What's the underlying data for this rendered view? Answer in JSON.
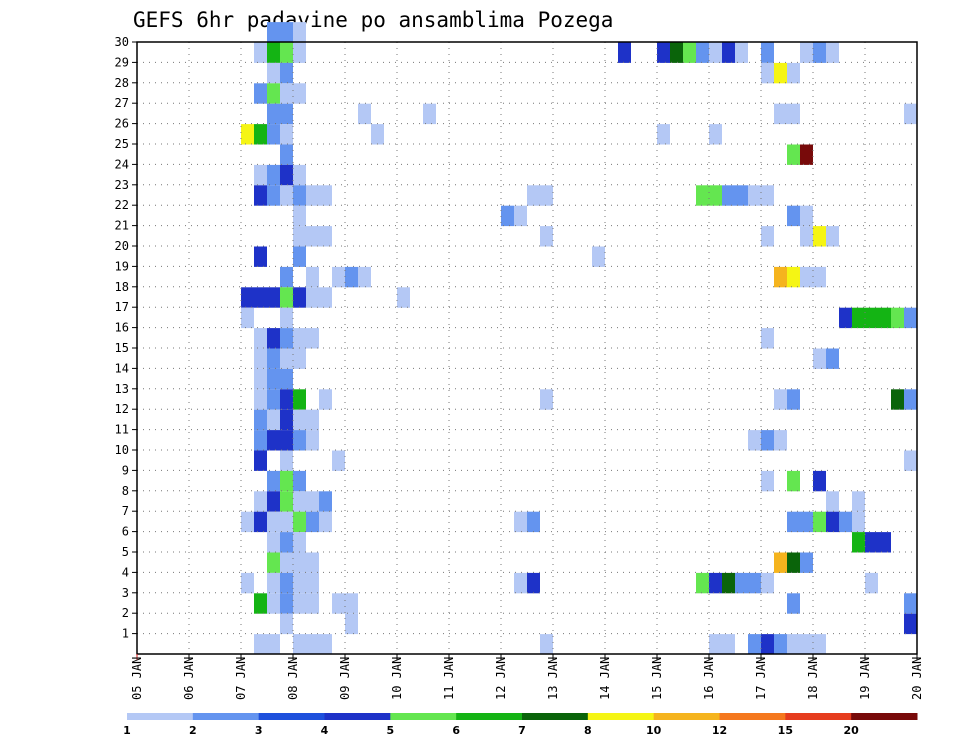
{
  "chart_data": {
    "type": "heatmap",
    "title": "GEFS 6hr padavine po ansamblima Pozega",
    "xlabel": "",
    "ylabel": "",
    "x_ticks": [
      "05 JAN",
      "06 JAN",
      "07 JAN",
      "08 JAN",
      "09 JAN",
      "10 JAN",
      "11 JAN",
      "12 JAN",
      "13 JAN",
      "14 JAN",
      "15 JAN",
      "16 JAN",
      "17 JAN",
      "18 JAN",
      "19 JAN",
      "20 JAN"
    ],
    "y_ticks": [
      1,
      2,
      3,
      4,
      5,
      6,
      7,
      8,
      9,
      10,
      11,
      12,
      13,
      14,
      15,
      16,
      17,
      18,
      19,
      20,
      21,
      22,
      23,
      24,
      25,
      26,
      27,
      28,
      29,
      30
    ],
    "xlim": [
      0,
      60
    ],
    "ylim": [
      0,
      30
    ],
    "x_unit": "6-hour steps from 05 JAN 00UTC",
    "grid": true,
    "colorbar": {
      "labels": [
        "1",
        "2",
        "3",
        "4",
        "5",
        "6",
        "7",
        "8",
        "10",
        "12",
        "15",
        "20"
      ],
      "colors": [
        "#b4c8f5",
        "#6494ef",
        "#1e50dc",
        "#1e32c8",
        "#64e650",
        "#14b414",
        "#0a640a",
        "#f5f514",
        "#f5b41e",
        "#f5781e",
        "#e63c1e",
        "#780a0a"
      ]
    },
    "cells": [
      {
        "x": 10,
        "y": 30,
        "v": 2
      },
      {
        "x": 11,
        "y": 30,
        "v": 2
      },
      {
        "x": 12,
        "y": 30,
        "v": 1
      },
      {
        "x": 9,
        "y": 29,
        "v": 1
      },
      {
        "x": 10,
        "y": 29,
        "v": 6
      },
      {
        "x": 11,
        "y": 29,
        "v": 5
      },
      {
        "x": 12,
        "y": 29,
        "v": 1
      },
      {
        "x": 37,
        "y": 29,
        "v": 4
      },
      {
        "x": 40,
        "y": 29,
        "v": 4
      },
      {
        "x": 41,
        "y": 29,
        "v": 7
      },
      {
        "x": 42,
        "y": 29,
        "v": 5
      },
      {
        "x": 43,
        "y": 29,
        "v": 2
      },
      {
        "x": 44,
        "y": 29,
        "v": 1
      },
      {
        "x": 45,
        "y": 29,
        "v": 4
      },
      {
        "x": 46,
        "y": 29,
        "v": 1
      },
      {
        "x": 48,
        "y": 29,
        "v": 2
      },
      {
        "x": 51,
        "y": 29,
        "v": 1
      },
      {
        "x": 52,
        "y": 29,
        "v": 2
      },
      {
        "x": 53,
        "y": 29,
        "v": 1
      },
      {
        "x": 10,
        "y": 28,
        "v": 1
      },
      {
        "x": 11,
        "y": 28,
        "v": 2
      },
      {
        "x": 48,
        "y": 28,
        "v": 1
      },
      {
        "x": 49,
        "y": 28,
        "v": 8
      },
      {
        "x": 50,
        "y": 28,
        "v": 1
      },
      {
        "x": 9,
        "y": 27,
        "v": 2
      },
      {
        "x": 10,
        "y": 27,
        "v": 5
      },
      {
        "x": 11,
        "y": 27,
        "v": 1
      },
      {
        "x": 12,
        "y": 27,
        "v": 1
      },
      {
        "x": 10,
        "y": 26,
        "v": 2
      },
      {
        "x": 11,
        "y": 26,
        "v": 2
      },
      {
        "x": 17,
        "y": 26,
        "v": 1
      },
      {
        "x": 22,
        "y": 26,
        "v": 1
      },
      {
        "x": 49,
        "y": 26,
        "v": 1
      },
      {
        "x": 50,
        "y": 26,
        "v": 1
      },
      {
        "x": 59,
        "y": 26,
        "v": 1
      },
      {
        "x": 8,
        "y": 25,
        "v": 8
      },
      {
        "x": 9,
        "y": 25,
        "v": 6
      },
      {
        "x": 10,
        "y": 25,
        "v": 2
      },
      {
        "x": 11,
        "y": 25,
        "v": 1
      },
      {
        "x": 18,
        "y": 25,
        "v": 1
      },
      {
        "x": 40,
        "y": 25,
        "v": 1
      },
      {
        "x": 44,
        "y": 25,
        "v": 1
      },
      {
        "x": 11,
        "y": 24,
        "v": 2
      },
      {
        "x": 50,
        "y": 24,
        "v": 5
      },
      {
        "x": 51,
        "y": 24,
        "v": 20
      },
      {
        "x": 9,
        "y": 23,
        "v": 1
      },
      {
        "x": 10,
        "y": 23,
        "v": 2
      },
      {
        "x": 11,
        "y": 23,
        "v": 4
      },
      {
        "x": 12,
        "y": 23,
        "v": 1
      },
      {
        "x": 9,
        "y": 22,
        "v": 4
      },
      {
        "x": 10,
        "y": 22,
        "v": 2
      },
      {
        "x": 11,
        "y": 22,
        "v": 1
      },
      {
        "x": 12,
        "y": 22,
        "v": 2
      },
      {
        "x": 13,
        "y": 22,
        "v": 1
      },
      {
        "x": 14,
        "y": 22,
        "v": 1
      },
      {
        "x": 30,
        "y": 22,
        "v": 1
      },
      {
        "x": 31,
        "y": 22,
        "v": 1
      },
      {
        "x": 43,
        "y": 22,
        "v": 5
      },
      {
        "x": 44,
        "y": 22,
        "v": 5
      },
      {
        "x": 45,
        "y": 22,
        "v": 2
      },
      {
        "x": 46,
        "y": 22,
        "v": 2
      },
      {
        "x": 47,
        "y": 22,
        "v": 1
      },
      {
        "x": 48,
        "y": 22,
        "v": 1
      },
      {
        "x": 12,
        "y": 21,
        "v": 1
      },
      {
        "x": 28,
        "y": 21,
        "v": 2
      },
      {
        "x": 29,
        "y": 21,
        "v": 1
      },
      {
        "x": 50,
        "y": 21,
        "v": 2
      },
      {
        "x": 51,
        "y": 21,
        "v": 1
      },
      {
        "x": 12,
        "y": 20,
        "v": 1
      },
      {
        "x": 13,
        "y": 20,
        "v": 1
      },
      {
        "x": 14,
        "y": 20,
        "v": 1
      },
      {
        "x": 31,
        "y": 20,
        "v": 1
      },
      {
        "x": 48,
        "y": 20,
        "v": 1
      },
      {
        "x": 51,
        "y": 20,
        "v": 1
      },
      {
        "x": 52,
        "y": 20,
        "v": 8
      },
      {
        "x": 53,
        "y": 20,
        "v": 1
      },
      {
        "x": 9,
        "y": 19,
        "v": 4
      },
      {
        "x": 12,
        "y": 19,
        "v": 2
      },
      {
        "x": 35,
        "y": 19,
        "v": 1
      },
      {
        "x": 11,
        "y": 18,
        "v": 2
      },
      {
        "x": 13,
        "y": 18,
        "v": 1
      },
      {
        "x": 15,
        "y": 18,
        "v": 1
      },
      {
        "x": 16,
        "y": 18,
        "v": 2
      },
      {
        "x": 17,
        "y": 18,
        "v": 1
      },
      {
        "x": 49,
        "y": 18,
        "v": 10
      },
      {
        "x": 50,
        "y": 18,
        "v": 8
      },
      {
        "x": 51,
        "y": 18,
        "v": 1
      },
      {
        "x": 52,
        "y": 18,
        "v": 1
      },
      {
        "x": 8,
        "y": 17,
        "v": 4
      },
      {
        "x": 9,
        "y": 17,
        "v": 4
      },
      {
        "x": 10,
        "y": 17,
        "v": 4
      },
      {
        "x": 11,
        "y": 17,
        "v": 5
      },
      {
        "x": 12,
        "y": 17,
        "v": 4
      },
      {
        "x": 13,
        "y": 17,
        "v": 1
      },
      {
        "x": 14,
        "y": 17,
        "v": 1
      },
      {
        "x": 20,
        "y": 17,
        "v": 1
      },
      {
        "x": 8,
        "y": 16,
        "v": 1
      },
      {
        "x": 11,
        "y": 16,
        "v": 1
      },
      {
        "x": 54,
        "y": 16,
        "v": 4
      },
      {
        "x": 55,
        "y": 16,
        "v": 6
      },
      {
        "x": 56,
        "y": 16,
        "v": 6
      },
      {
        "x": 57,
        "y": 16,
        "v": 6
      },
      {
        "x": 58,
        "y": 16,
        "v": 5
      },
      {
        "x": 59,
        "y": 16,
        "v": 2
      },
      {
        "x": 9,
        "y": 15,
        "v": 1
      },
      {
        "x": 10,
        "y": 15,
        "v": 4
      },
      {
        "x": 11,
        "y": 15,
        "v": 2
      },
      {
        "x": 12,
        "y": 15,
        "v": 1
      },
      {
        "x": 13,
        "y": 15,
        "v": 1
      },
      {
        "x": 48,
        "y": 15,
        "v": 1
      },
      {
        "x": 9,
        "y": 14,
        "v": 1
      },
      {
        "x": 10,
        "y": 14,
        "v": 2
      },
      {
        "x": 11,
        "y": 14,
        "v": 1
      },
      {
        "x": 12,
        "y": 14,
        "v": 1
      },
      {
        "x": 52,
        "y": 14,
        "v": 1
      },
      {
        "x": 53,
        "y": 14,
        "v": 2
      },
      {
        "x": 9,
        "y": 13,
        "v": 1
      },
      {
        "x": 10,
        "y": 13,
        "v": 2
      },
      {
        "x": 11,
        "y": 13,
        "v": 2
      },
      {
        "x": 9,
        "y": 12,
        "v": 1
      },
      {
        "x": 10,
        "y": 12,
        "v": 2
      },
      {
        "x": 11,
        "y": 12,
        "v": 4
      },
      {
        "x": 12,
        "y": 12,
        "v": 6
      },
      {
        "x": 14,
        "y": 12,
        "v": 1
      },
      {
        "x": 31,
        "y": 12,
        "v": 1
      },
      {
        "x": 49,
        "y": 12,
        "v": 1
      },
      {
        "x": 50,
        "y": 12,
        "v": 2
      },
      {
        "x": 58,
        "y": 12,
        "v": 7
      },
      {
        "x": 59,
        "y": 12,
        "v": 2
      },
      {
        "x": 9,
        "y": 11,
        "v": 2
      },
      {
        "x": 10,
        "y": 11,
        "v": 1
      },
      {
        "x": 11,
        "y": 11,
        "v": 4
      },
      {
        "x": 12,
        "y": 11,
        "v": 1
      },
      {
        "x": 13,
        "y": 11,
        "v": 1
      },
      {
        "x": 9,
        "y": 10,
        "v": 2
      },
      {
        "x": 10,
        "y": 10,
        "v": 4
      },
      {
        "x": 11,
        "y": 10,
        "v": 4
      },
      {
        "x": 12,
        "y": 10,
        "v": 2
      },
      {
        "x": 13,
        "y": 10,
        "v": 1
      },
      {
        "x": 47,
        "y": 10,
        "v": 1
      },
      {
        "x": 48,
        "y": 10,
        "v": 2
      },
      {
        "x": 49,
        "y": 10,
        "v": 1
      },
      {
        "x": 9,
        "y": 9,
        "v": 4
      },
      {
        "x": 11,
        "y": 9,
        "v": 1
      },
      {
        "x": 15,
        "y": 9,
        "v": 1
      },
      {
        "x": 59,
        "y": 9,
        "v": 1
      },
      {
        "x": 10,
        "y": 8,
        "v": 2
      },
      {
        "x": 11,
        "y": 8,
        "v": 5
      },
      {
        "x": 12,
        "y": 8,
        "v": 2
      },
      {
        "x": 48,
        "y": 8,
        "v": 1
      },
      {
        "x": 50,
        "y": 8,
        "v": 5
      },
      {
        "x": 52,
        "y": 8,
        "v": 4
      },
      {
        "x": 9,
        "y": 7,
        "v": 1
      },
      {
        "x": 10,
        "y": 7,
        "v": 4
      },
      {
        "x": 11,
        "y": 7,
        "v": 5
      },
      {
        "x": 12,
        "y": 7,
        "v": 1
      },
      {
        "x": 13,
        "y": 7,
        "v": 1
      },
      {
        "x": 14,
        "y": 7,
        "v": 2
      },
      {
        "x": 53,
        "y": 7,
        "v": 1
      },
      {
        "x": 55,
        "y": 7,
        "v": 1
      },
      {
        "x": 8,
        "y": 6,
        "v": 1
      },
      {
        "x": 9,
        "y": 6,
        "v": 4
      },
      {
        "x": 10,
        "y": 6,
        "v": 1
      },
      {
        "x": 11,
        "y": 6,
        "v": 1
      },
      {
        "x": 12,
        "y": 6,
        "v": 5
      },
      {
        "x": 13,
        "y": 6,
        "v": 2
      },
      {
        "x": 14,
        "y": 6,
        "v": 1
      },
      {
        "x": 29,
        "y": 6,
        "v": 1
      },
      {
        "x": 30,
        "y": 6,
        "v": 2
      },
      {
        "x": 50,
        "y": 6,
        "v": 2
      },
      {
        "x": 51,
        "y": 6,
        "v": 2
      },
      {
        "x": 52,
        "y": 6,
        "v": 5
      },
      {
        "x": 53,
        "y": 6,
        "v": 4
      },
      {
        "x": 54,
        "y": 6,
        "v": 2
      },
      {
        "x": 55,
        "y": 6,
        "v": 1
      },
      {
        "x": 10,
        "y": 5,
        "v": 1
      },
      {
        "x": 11,
        "y": 5,
        "v": 2
      },
      {
        "x": 12,
        "y": 5,
        "v": 1
      },
      {
        "x": 55,
        "y": 5,
        "v": 6
      },
      {
        "x": 56,
        "y": 5,
        "v": 4
      },
      {
        "x": 57,
        "y": 5,
        "v": 4
      },
      {
        "x": 10,
        "y": 4,
        "v": 5
      },
      {
        "x": 11,
        "y": 4,
        "v": 1
      },
      {
        "x": 12,
        "y": 4,
        "v": 1
      },
      {
        "x": 13,
        "y": 4,
        "v": 1
      },
      {
        "x": 49,
        "y": 4,
        "v": 10
      },
      {
        "x": 50,
        "y": 4,
        "v": 7
      },
      {
        "x": 51,
        "y": 4,
        "v": 2
      },
      {
        "x": 8,
        "y": 3,
        "v": 1
      },
      {
        "x": 10,
        "y": 3,
        "v": 1
      },
      {
        "x": 11,
        "y": 3,
        "v": 2
      },
      {
        "x": 12,
        "y": 3,
        "v": 1
      },
      {
        "x": 13,
        "y": 3,
        "v": 1
      },
      {
        "x": 29,
        "y": 3,
        "v": 1
      },
      {
        "x": 30,
        "y": 3,
        "v": 4
      },
      {
        "x": 43,
        "y": 3,
        "v": 5
      },
      {
        "x": 44,
        "y": 3,
        "v": 4
      },
      {
        "x": 45,
        "y": 3,
        "v": 7
      },
      {
        "x": 46,
        "y": 3,
        "v": 2
      },
      {
        "x": 47,
        "y": 3,
        "v": 2
      },
      {
        "x": 48,
        "y": 3,
        "v": 1
      },
      {
        "x": 56,
        "y": 3,
        "v": 1
      },
      {
        "x": 9,
        "y": 2,
        "v": 6
      },
      {
        "x": 10,
        "y": 2,
        "v": 1
      },
      {
        "x": 11,
        "y": 2,
        "v": 2
      },
      {
        "x": 12,
        "y": 2,
        "v": 1
      },
      {
        "x": 13,
        "y": 2,
        "v": 1
      },
      {
        "x": 15,
        "y": 2,
        "v": 1
      },
      {
        "x": 16,
        "y": 2,
        "v": 1
      },
      {
        "x": 50,
        "y": 2,
        "v": 2
      },
      {
        "x": 59,
        "y": 2,
        "v": 2
      },
      {
        "x": 11,
        "y": 1,
        "v": 1
      },
      {
        "x": 16,
        "y": 1,
        "v": 1
      },
      {
        "x": 59,
        "y": 1,
        "v": 4
      },
      {
        "x": 9,
        "y": 0,
        "v": 1
      },
      {
        "x": 10,
        "y": 0,
        "v": 1
      },
      {
        "x": 12,
        "y": 0,
        "v": 1
      },
      {
        "x": 13,
        "y": 0,
        "v": 1
      },
      {
        "x": 14,
        "y": 0,
        "v": 1
      },
      {
        "x": 31,
        "y": 0,
        "v": 1
      },
      {
        "x": 44,
        "y": 0,
        "v": 1
      },
      {
        "x": 45,
        "y": 0,
        "v": 1
      },
      {
        "x": 47,
        "y": 0,
        "v": 2
      },
      {
        "x": 48,
        "y": 0,
        "v": 4
      },
      {
        "x": 49,
        "y": 0,
        "v": 2
      },
      {
        "x": 50,
        "y": 0,
        "v": 1
      },
      {
        "x": 51,
        "y": 0,
        "v": 1
      },
      {
        "x": 52,
        "y": 0,
        "v": 1
      }
    ]
  }
}
